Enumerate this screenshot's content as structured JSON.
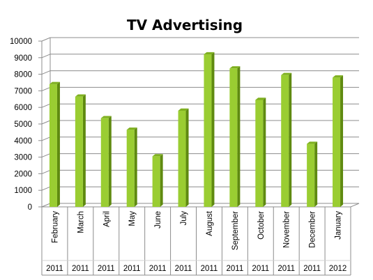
{
  "chart_data": {
    "type": "bar",
    "title": "TV Advertising",
    "xlabel": "",
    "ylabel": "",
    "ylim": [
      0,
      10000
    ],
    "y_ticks": [
      "0",
      "1000",
      "2000",
      "3000",
      "4000",
      "5000",
      "6000",
      "7000",
      "8000",
      "9000",
      "10000"
    ],
    "grid": true,
    "legend": "none",
    "bar_color": "#9acd32",
    "categories": [
      "February",
      "March",
      "April",
      "May",
      "June",
      "July",
      "August",
      "September",
      "October",
      "November",
      "December",
      "January"
    ],
    "years": [
      "2011",
      "2011",
      "2011",
      "2011",
      "2011",
      "2011",
      "2011",
      "2011",
      "2011",
      "2011",
      "2011",
      "2012"
    ],
    "values": [
      7400,
      6650,
      5350,
      4650,
      3050,
      5800,
      9200,
      8350,
      6450,
      7950,
      3800,
      7800
    ]
  }
}
